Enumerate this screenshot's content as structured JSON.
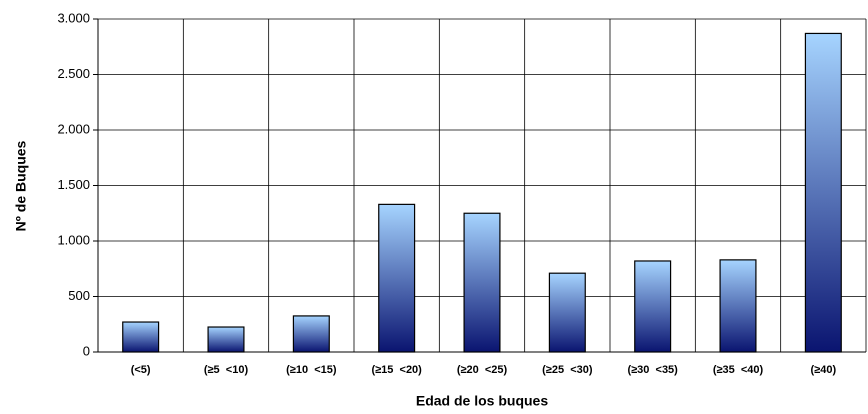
{
  "chart_data": {
    "type": "bar",
    "x_label": "Edad de los buques",
    "y_label": "Nº de Buques",
    "categories": [
      "(<5)",
      "(≥5  <10)",
      "(≥10  <15)",
      "(≥15  <20)",
      "(≥20  <25)",
      "(≥25  <30)",
      "(≥30  <35)",
      "(≥35  <40)",
      "(≥40)"
    ],
    "values": [
      270,
      225,
      325,
      1330,
      1250,
      710,
      820,
      830,
      2870
    ],
    "gradient": [
      "#a6d4ff",
      "#0a1470"
    ],
    "ylim": [
      0,
      3000
    ],
    "yticks": [
      0,
      500,
      {
        "value": 1000,
        "label": "1.000"
      },
      {
        "value": 1500,
        "label": "1.500"
      },
      {
        "value": 2000,
        "label": "2.000"
      },
      {
        "value": 2500,
        "label": "2.500"
      },
      {
        "value": 3000,
        "label": "3.000"
      }
    ],
    "grid": true
  }
}
